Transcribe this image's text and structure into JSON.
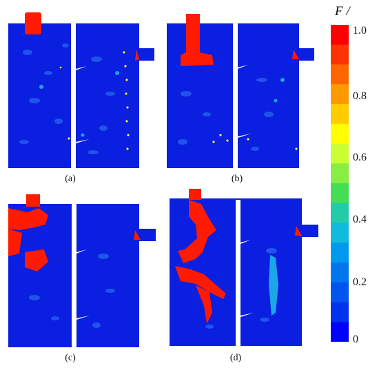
{
  "figure": {
    "panels": [
      {
        "id": "a",
        "caption": "(a)"
      },
      {
        "id": "b",
        "caption": "(b)"
      },
      {
        "id": "c",
        "caption": "(c)"
      },
      {
        "id": "d",
        "caption": "(d)"
      }
    ]
  },
  "colorbar": {
    "title": "F /",
    "ticks": [
      "1.0",
      "0.8",
      "0.6",
      "0.4",
      "0.2",
      "0"
    ],
    "colors": [
      "#ff0000",
      "#ff3300",
      "#ff6600",
      "#ff9900",
      "#ffcc00",
      "#ffff00",
      "#ccff33",
      "#88ee44",
      "#44dd55",
      "#22ccaa",
      "#11bbdd",
      "#0099ee",
      "#0077ee",
      "#0055ee",
      "#0033ee",
      "#0000ff"
    ]
  },
  "palette": {
    "field_blue": "#0a1fe0",
    "speckle": "#1a6af0",
    "cyan": "#22c8e8",
    "red": "#ff1a00",
    "yellow": "#ffee22"
  }
}
